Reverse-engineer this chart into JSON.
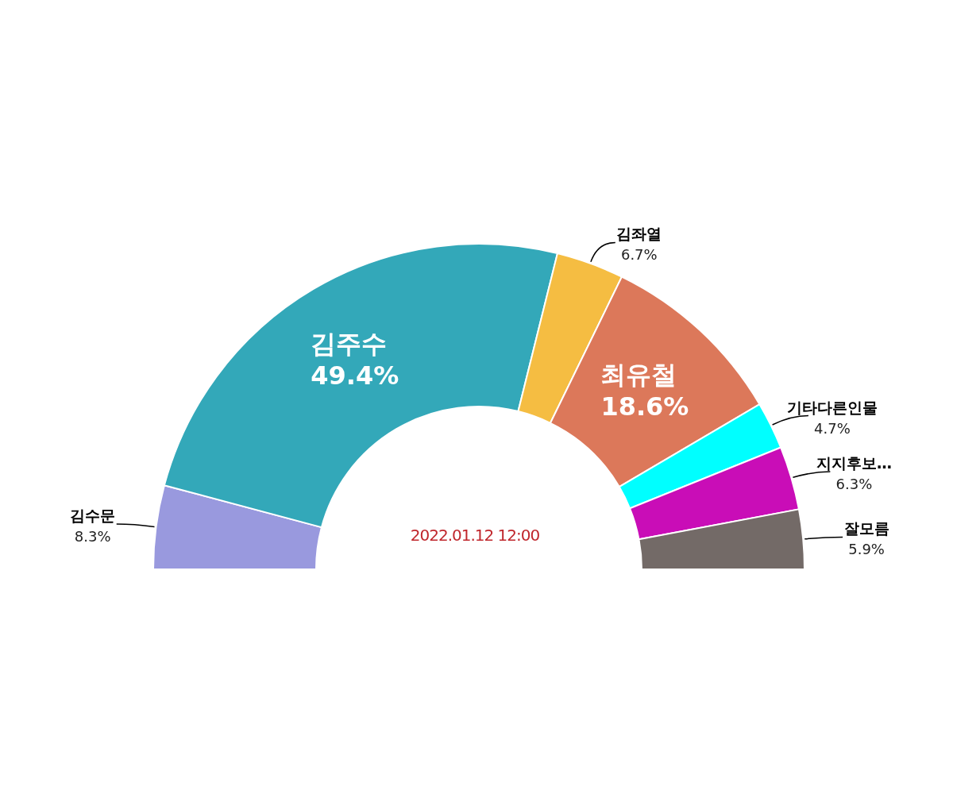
{
  "chart_data": {
    "type": "donut",
    "categories": [
      "김수문",
      "김주수",
      "김좌열",
      "최유철",
      "기타다른인물",
      "지지후보…",
      "잘모름"
    ],
    "values": [
      8.3,
      49.4,
      6.7,
      18.6,
      4.7,
      6.3,
      5.9
    ],
    "value_labels": [
      "8.3%",
      "49.4%",
      "6.7%",
      "18.6%",
      "4.7%",
      "6.3%",
      "5.9%"
    ],
    "colors": [
      "#9999de",
      "#33a8b9",
      "#f5bd42",
      "#dc785a",
      "#00ffff",
      "#c90db7",
      "#736a67"
    ],
    "annotations": [
      "2022.01.12 12:00"
    ]
  }
}
